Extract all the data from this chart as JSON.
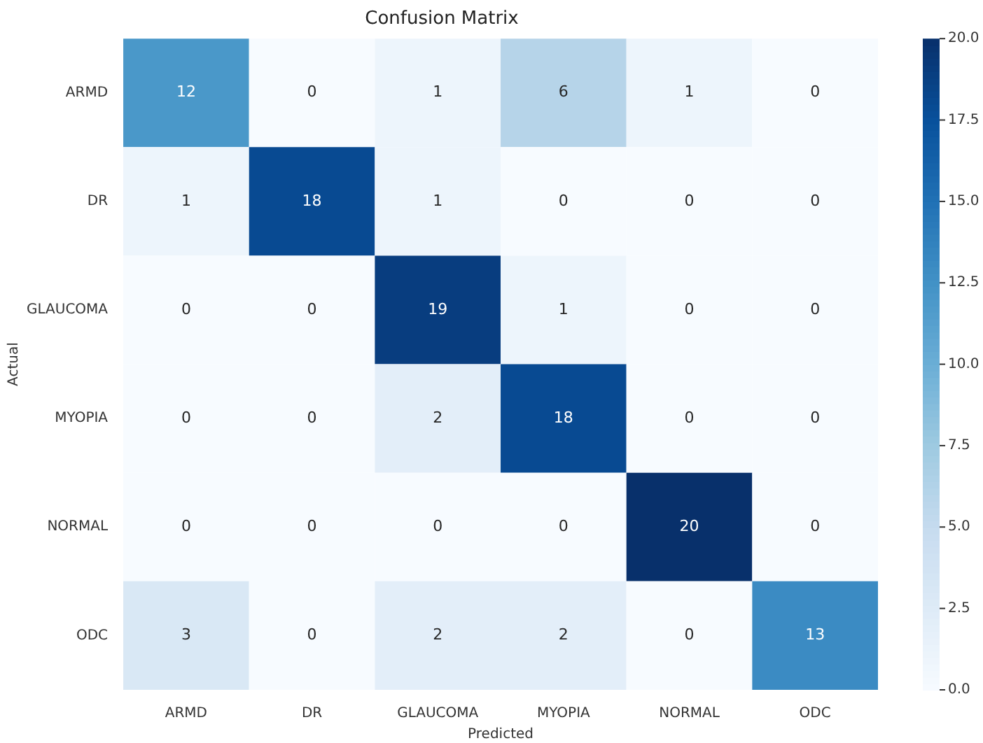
{
  "chart_data": {
    "type": "heatmap",
    "title": "Confusion Matrix",
    "xlabel": "Predicted",
    "ylabel": "Actual",
    "categories": [
      "ARMD",
      "DR",
      "GLAUCOMA",
      "MYOPIA",
      "NORMAL",
      "ODC"
    ],
    "y_categories": [
      "ARMD",
      "DR",
      "GLAUCOMA",
      "MYOPIA",
      "NORMAL",
      "ODC"
    ],
    "cells": [
      [
        12,
        0,
        1,
        6,
        1,
        0
      ],
      [
        1,
        18,
        1,
        0,
        0,
        0
      ],
      [
        0,
        0,
        19,
        1,
        0,
        0
      ],
      [
        0,
        0,
        2,
        18,
        0,
        0
      ],
      [
        0,
        0,
        0,
        0,
        20,
        0
      ],
      [
        3,
        0,
        2,
        2,
        0,
        13
      ]
    ],
    "data_labels": true,
    "clim": [
      0,
      20
    ],
    "cticks": [
      {
        "value": 0,
        "label": "0.0"
      },
      {
        "value": 2.5,
        "label": "2.5"
      },
      {
        "value": 5,
        "label": "5.0"
      },
      {
        "value": 7.5,
        "label": "7.5"
      },
      {
        "value": 10,
        "label": "10.0"
      },
      {
        "value": 12.5,
        "label": "12.5"
      },
      {
        "value": 15,
        "label": "15.0"
      },
      {
        "value": 17.5,
        "label": "17.5"
      },
      {
        "value": 20,
        "label": "20.0"
      }
    ]
  }
}
